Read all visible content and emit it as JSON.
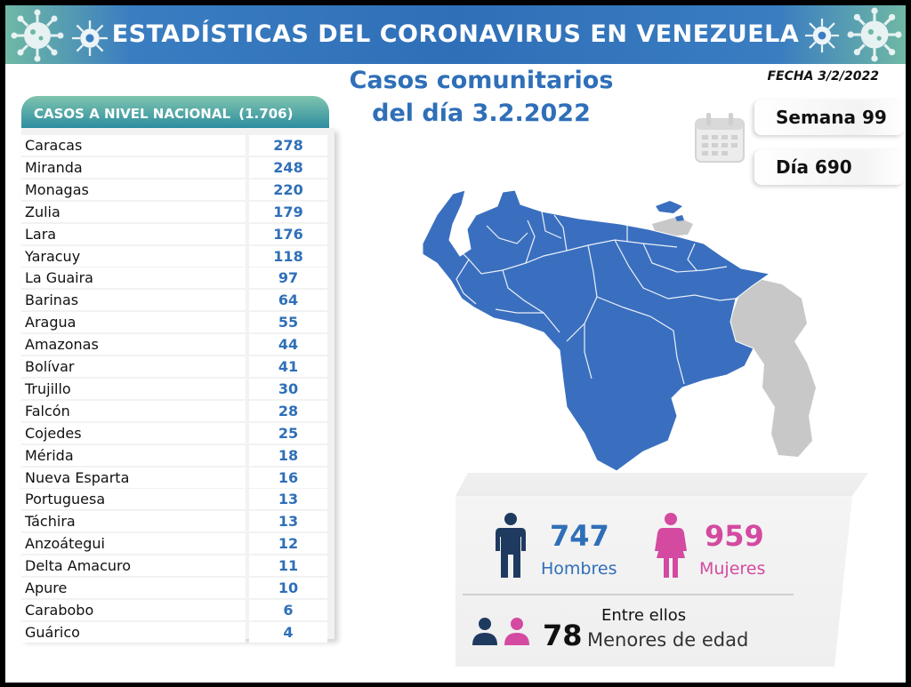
{
  "header": {
    "title": "ESTADÍSTICAS DEL CORONAVIRUS EN VENEZUELA"
  },
  "subtitle": {
    "line1": "Casos comunitarios",
    "line2": "del día 3.2.2022"
  },
  "date_label": "FECHA 3/2/2022",
  "week": "Semana 99",
  "day": "Día 690",
  "chart_data": {
    "type": "table",
    "title": "CASOS A NIVEL NACIONAL",
    "total_label": "(1.706)",
    "total": 1706,
    "categories": [
      "Caracas",
      "Miranda",
      "Monagas",
      "Zulia",
      "Lara",
      "Yaracuy",
      "La Guaira",
      "Barinas",
      "Aragua",
      "Amazonas",
      "Bolívar",
      "Trujillo",
      "Falcón",
      "Cojedes",
      "Mérida",
      "Nueva Esparta",
      "Portuguesa",
      "Táchira",
      "Anzoátegui",
      "Delta Amacuro",
      "Apure",
      "Carabobo",
      "Guárico"
    ],
    "values": [
      278,
      248,
      220,
      179,
      176,
      118,
      97,
      64,
      55,
      44,
      41,
      30,
      28,
      25,
      18,
      16,
      13,
      13,
      12,
      11,
      10,
      6,
      4
    ]
  },
  "stats": {
    "men": {
      "value": "747",
      "label": "Hombres"
    },
    "women": {
      "value": "959",
      "label": "Mujeres"
    },
    "minors": {
      "prefix": "Entre ellos",
      "value": "78",
      "label": "Menores de edad"
    }
  },
  "colors": {
    "accent_blue": "#2f6fb8",
    "women_pink": "#d44aa0",
    "men_navy": "#1f3a5f",
    "map_blue": "#3a6fbf",
    "map_grey": "#c8c8c8"
  },
  "icons": [
    "virus-icon",
    "calendar-icon",
    "man-icon",
    "woman-icon",
    "child-icon"
  ]
}
